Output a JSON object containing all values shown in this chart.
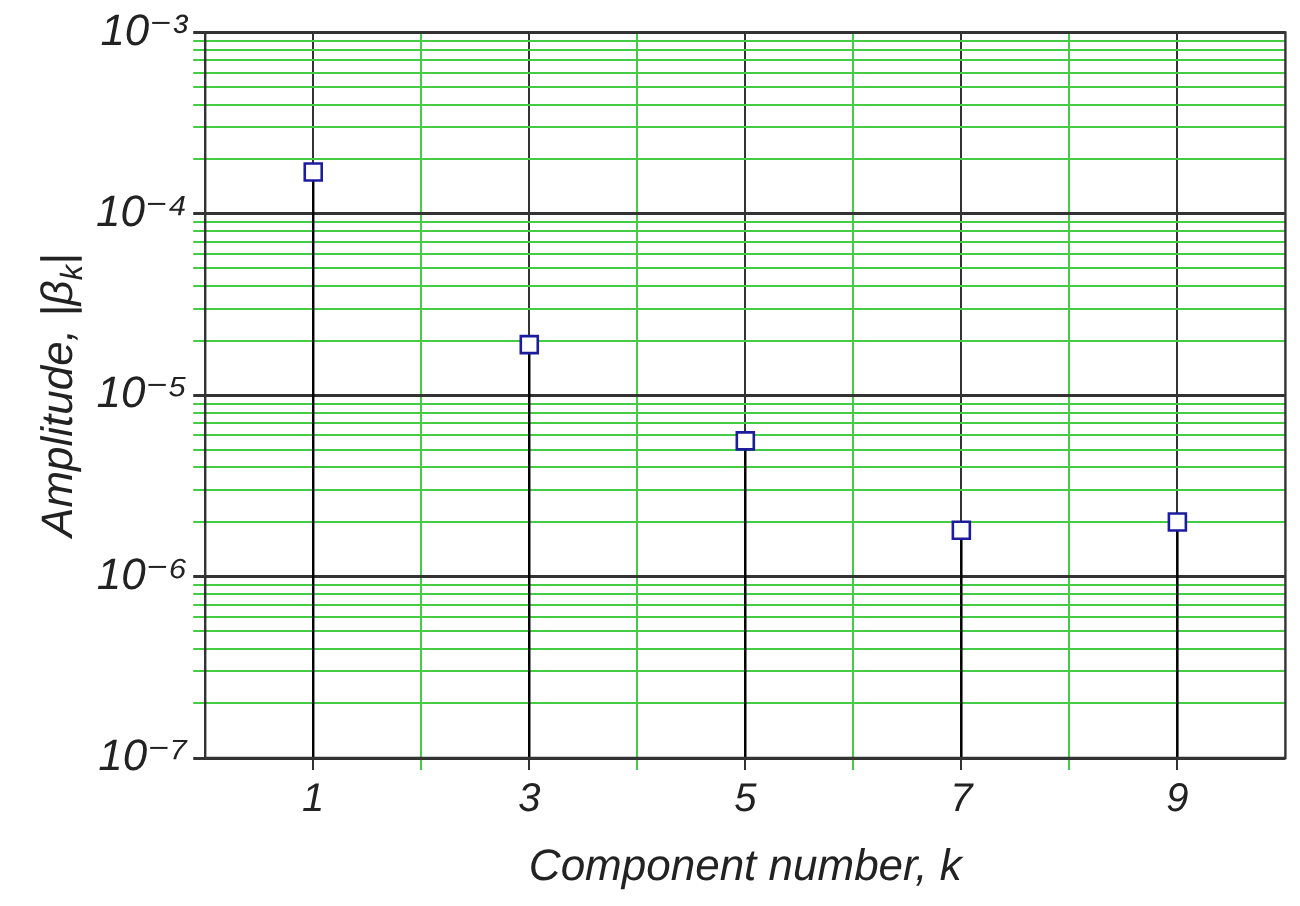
{
  "chart_data": {
    "type": "lollipop",
    "xlabel": "Component number, k",
    "ylabel": "Amplitude, |β$_{k}$|",
    "x": [
      1,
      3,
      5,
      7,
      9
    ],
    "series": [
      {
        "color": "#1c1c9c",
        "values": [
          0.00017,
          1.9e-05,
          5.6e-06,
          1.8e-06,
          2e-06
        ]
      }
    ],
    "marker": "square",
    "log": "y",
    "grid": true,
    "legend": false,
    "xlim": [
      0,
      10
    ],
    "xticks": [
      1,
      {
        "value": 2,
        "label": null
      },
      3,
      {
        "value": 4,
        "label": null
      },
      5,
      {
        "value": 6,
        "label": null
      },
      7,
      {
        "value": 8,
        "label": null
      },
      9
    ],
    "ylim": [
      1e-07,
      0.001
    ],
    "yticks": [
      {
        "value": 1e-07,
        "label": "10⁻⁷"
      },
      {
        "value": 2e-07,
        "label": null
      },
      {
        "value": 3e-07,
        "label": null
      },
      {
        "value": 4e-07,
        "label": null
      },
      {
        "value": 5e-07,
        "label": null
      },
      {
        "value": 6e-07,
        "label": null
      },
      {
        "value": 7e-07,
        "label": null
      },
      {
        "value": 8e-07,
        "label": null
      },
      {
        "value": 9e-07,
        "label": null
      },
      {
        "value": 1e-06,
        "label": "10⁻⁶"
      },
      {
        "value": 2e-06,
        "label": null
      },
      {
        "value": 3e-06,
        "label": null
      },
      {
        "value": 4e-06,
        "label": null
      },
      {
        "value": 5e-06,
        "label": null
      },
      {
        "value": 6e-06,
        "label": null
      },
      {
        "value": 7e-06,
        "label": null
      },
      {
        "value": 8e-06,
        "label": null
      },
      {
        "value": 9e-06,
        "label": null
      },
      {
        "value": 1e-05,
        "label": "10⁻⁵"
      },
      {
        "value": 2e-05,
        "label": null
      },
      {
        "value": 3e-05,
        "label": null
      },
      {
        "value": 4e-05,
        "label": null
      },
      {
        "value": 5e-05,
        "label": null
      },
      {
        "value": 6e-05,
        "label": null
      },
      {
        "value": 7e-05,
        "label": null
      },
      {
        "value": 8e-05,
        "label": null
      },
      {
        "value": 9e-05,
        "label": null
      },
      {
        "value": 0.0001,
        "label": "10⁻⁴"
      },
      {
        "value": 0.0002,
        "label": null
      },
      {
        "value": 0.0003,
        "label": null
      },
      {
        "value": 0.0004,
        "label": null
      },
      {
        "value": 0.0005,
        "label": null
      },
      {
        "value": 0.0006,
        "label": null
      },
      {
        "value": 0.0007,
        "label": null
      },
      {
        "value": 0.0008,
        "label": null
      },
      {
        "value": 0.0009,
        "label": null
      },
      {
        "value": 0.001,
        "label": "10⁻³"
      }
    ]
  }
}
